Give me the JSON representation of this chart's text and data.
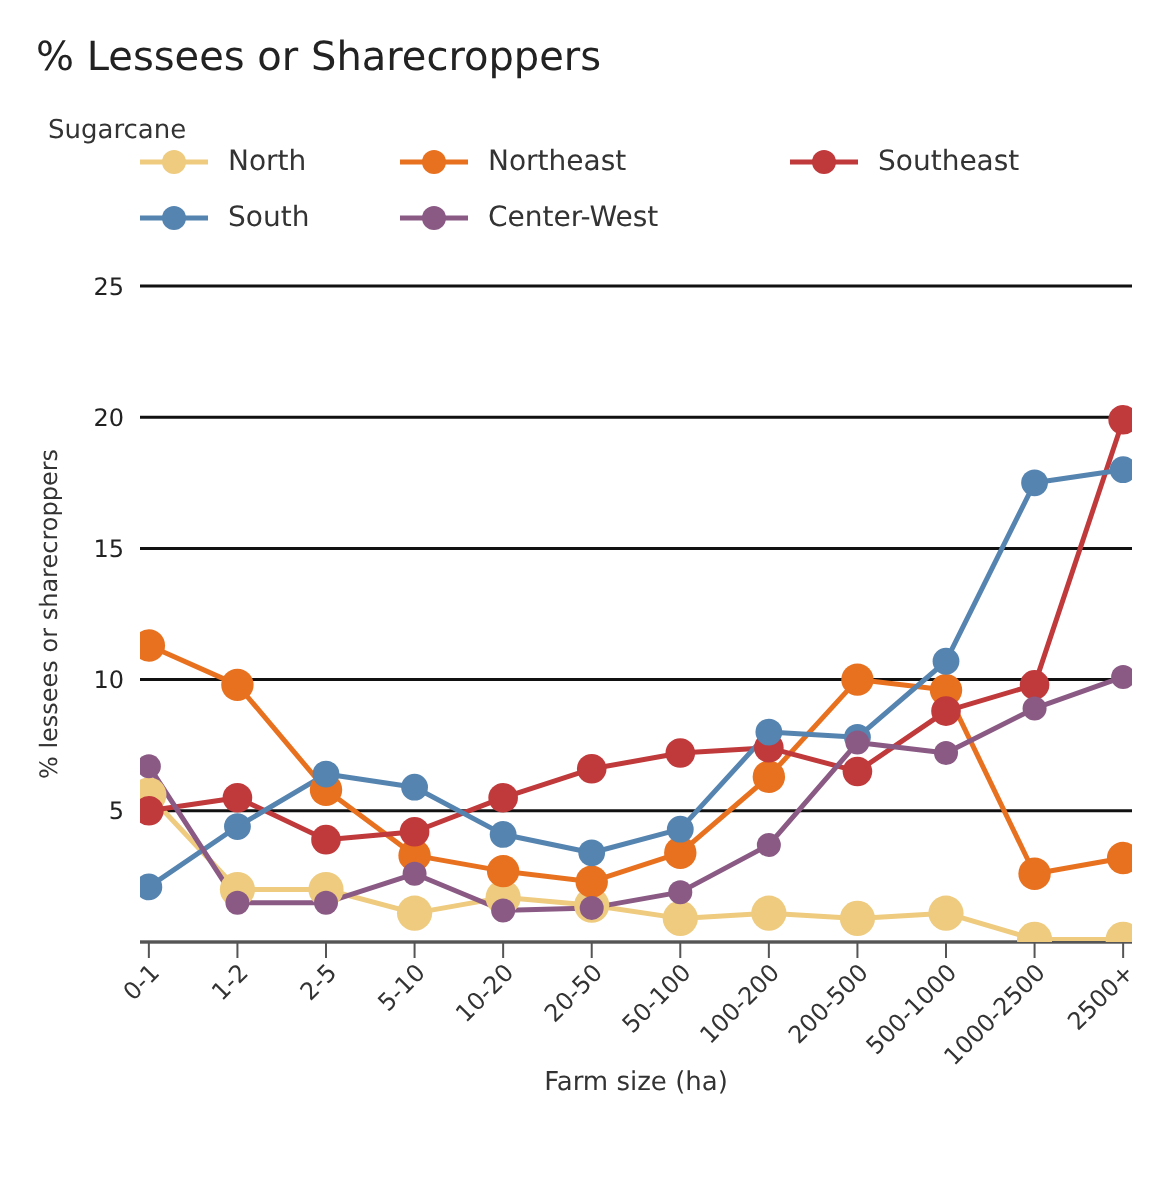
{
  "chart_data": {
    "type": "line",
    "title": "% Lessees or Sharecroppers",
    "subtitle": "Sugarcane",
    "xlabel": "Farm size (ha)",
    "ylabel": "% lessees or sharecroppers",
    "categories": [
      "0-1",
      "1-2",
      "2-5",
      "5-10",
      "10-20",
      "20-50",
      "50-100",
      "100-200",
      "200-500",
      "500-1000",
      "1000-2500",
      "2500+"
    ],
    "series": [
      {
        "name": "North",
        "color": "#eecb7f",
        "values": [
          5.6,
          2.0,
          2.0,
          1.1,
          1.7,
          1.4,
          0.9,
          1.1,
          0.9,
          1.1,
          0.1,
          0.1
        ]
      },
      {
        "name": "Northeast",
        "color": "#e8711f",
        "values": [
          11.3,
          9.8,
          5.8,
          3.3,
          2.7,
          2.3,
          3.4,
          6.3,
          10.0,
          9.6,
          2.6,
          3.2
        ]
      },
      {
        "name": "Southeast",
        "color": "#c0393b",
        "values": [
          5.0,
          5.5,
          3.9,
          4.2,
          5.5,
          6.6,
          7.2,
          7.4,
          6.5,
          8.8,
          9.8,
          19.9
        ]
      },
      {
        "name": "South",
        "color": "#5584b0",
        "values": [
          2.1,
          4.4,
          6.4,
          5.9,
          4.1,
          3.4,
          4.3,
          8.0,
          7.8,
          10.7,
          17.5,
          18.0
        ]
      },
      {
        "name": "Center-West",
        "color": "#8a5a85",
        "values": [
          6.7,
          1.5,
          1.5,
          2.6,
          1.2,
          1.3,
          1.9,
          3.7,
          7.6,
          7.2,
          8.9,
          10.1
        ]
      }
    ],
    "ylim": [
      0,
      25
    ],
    "yticks": [
      5,
      10,
      15,
      20,
      25
    ],
    "grid": "y",
    "legend": "top",
    "marker": "circle",
    "line_style": "solid"
  }
}
